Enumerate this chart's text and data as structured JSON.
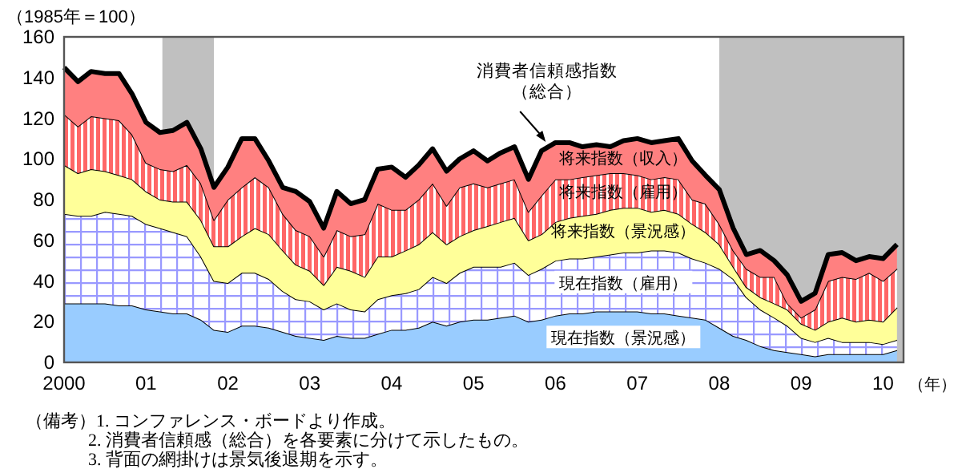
{
  "chart_data": {
    "type": "area",
    "stacked": true,
    "ylabel": "（1985年＝100）",
    "xlabel": "（年）",
    "x": [
      2000,
      2000.17,
      2000.33,
      2000.5,
      2000.67,
      2000.83,
      2001,
      2001.17,
      2001.33,
      2001.5,
      2001.67,
      2001.83,
      2002,
      2002.17,
      2002.33,
      2002.5,
      2002.67,
      2002.83,
      2003,
      2003.17,
      2003.33,
      2003.5,
      2003.67,
      2003.83,
      2004,
      2004.17,
      2004.33,
      2004.5,
      2004.67,
      2004.83,
      2005,
      2005.17,
      2005.33,
      2005.5,
      2005.67,
      2005.83,
      2006,
      2006.17,
      2006.33,
      2006.5,
      2006.67,
      2006.83,
      2007,
      2007.17,
      2007.33,
      2007.5,
      2007.67,
      2007.83,
      2008,
      2008.17,
      2008.33,
      2008.5,
      2008.67,
      2008.83,
      2009,
      2009.17,
      2009.33,
      2009.5,
      2009.67,
      2009.83,
      2010,
      2010.17
    ],
    "series": [
      {
        "name": "現在指数（景況感）",
        "color": "#99ccff",
        "values": [
          29,
          29,
          29,
          29,
          28,
          28,
          26,
          25,
          24,
          24,
          21,
          16,
          15,
          18,
          18,
          17,
          15,
          13,
          12,
          11,
          13,
          12,
          12,
          14,
          16,
          16,
          17,
          20,
          18,
          20,
          21,
          21,
          22,
          23,
          20,
          21,
          23,
          24,
          24,
          25,
          25,
          25,
          25,
          24,
          24,
          23,
          22,
          21,
          17,
          13,
          11,
          8,
          6,
          5,
          4,
          3,
          4,
          4,
          4,
          4,
          4,
          6
        ]
      },
      {
        "name": "現在指数（雇用）",
        "color": "#9999ff",
        "values": [
          44,
          43,
          43,
          45,
          45,
          44,
          42,
          41,
          40,
          38,
          31,
          24,
          24,
          26,
          26,
          24,
          20,
          18,
          18,
          15,
          16,
          14,
          13,
          17,
          17,
          18,
          19,
          22,
          21,
          24,
          26,
          26,
          25,
          26,
          23,
          25,
          27,
          27,
          27,
          27,
          28,
          29,
          29,
          31,
          31,
          31,
          29,
          28,
          29,
          28,
          21,
          18,
          16,
          13,
          8,
          7,
          8,
          6,
          6,
          6,
          5,
          5
        ]
      },
      {
        "name": "将来指数（景況感）",
        "color": "#ffff99",
        "values": [
          24,
          21,
          23,
          20,
          19,
          18,
          16,
          14,
          15,
          17,
          18,
          17,
          18,
          18,
          22,
          22,
          20,
          17,
          15,
          12,
          18,
          19,
          17,
          21,
          19,
          21,
          22,
          22,
          19,
          18,
          18,
          20,
          22,
          22,
          17,
          17,
          19,
          20,
          21,
          21,
          22,
          22,
          22,
          19,
          20,
          19,
          17,
          15,
          12,
          6,
          5,
          6,
          7,
          8,
          7,
          6,
          8,
          12,
          10,
          11,
          11,
          16
        ]
      },
      {
        "name": "将来指数（雇用）",
        "color": "#ff6666",
        "values": [
          25,
          23,
          26,
          26,
          27,
          22,
          14,
          15,
          15,
          18,
          18,
          13,
          23,
          24,
          25,
          23,
          18,
          17,
          17,
          14,
          18,
          17,
          21,
          26,
          23,
          20,
          22,
          24,
          19,
          24,
          23,
          19,
          19,
          19,
          14,
          19,
          21,
          19,
          19,
          19,
          18,
          17,
          16,
          16,
          16,
          17,
          12,
          14,
          10,
          8,
          9,
          10,
          13,
          3,
          3,
          10,
          20,
          20,
          21,
          23,
          20,
          19
        ]
      },
      {
        "name": "将来指数（収入）",
        "color": "#ff8080",
        "values": [
          23,
          22,
          22,
          22,
          23,
          20,
          20,
          18,
          20,
          21,
          17,
          16,
          16,
          24,
          19,
          13,
          13,
          19,
          17,
          14,
          19,
          16,
          17,
          17,
          21,
          16,
          17,
          17,
          17,
          14,
          16,
          13,
          15,
          16,
          16,
          22,
          18,
          18,
          15,
          15,
          13,
          16,
          18,
          18,
          18,
          20,
          19,
          14,
          17,
          11,
          7,
          13,
          8,
          14,
          8,
          8,
          13,
          12,
          9,
          8,
          11,
          12
        ]
      }
    ],
    "xlim": [
      2000,
      2010.25
    ],
    "xticks": [
      {
        "value": 2000,
        "label": "2000"
      },
      {
        "value": 2001,
        "label": "01"
      },
      {
        "value": 2002,
        "label": "02"
      },
      {
        "value": 2003,
        "label": "03"
      },
      {
        "value": 2004,
        "label": "04"
      },
      {
        "value": 2005,
        "label": "05"
      },
      {
        "value": 2006,
        "label": "06"
      },
      {
        "value": 2007,
        "label": "07"
      },
      {
        "value": 2008,
        "label": "08"
      },
      {
        "value": 2009,
        "label": "09"
      },
      {
        "value": 2010,
        "label": "10"
      }
    ],
    "ylim": [
      0,
      160
    ],
    "yticks": [
      0,
      20,
      40,
      60,
      80,
      100,
      120,
      140,
      160
    ],
    "bands": [
      {
        "axis": "x",
        "from": 2001.2,
        "to": 2001.83,
        "color": "#c0c0c0"
      },
      {
        "axis": "x",
        "from": 2008,
        "to": 2010.25,
        "color": "#c0c0c0"
      }
    ],
    "annotations": [
      {
        "text": "消費者信頼感指数（総合）",
        "x": 2005.9,
        "y": 106
      },
      "（備考）1.  コンファレンス・ボードより作成。",
      "2.  消費者信頼感（総合）を各要素に分けて示したもの。",
      "3.  背面の網掛けは景気後退期を示す。"
    ],
    "grid": false
  }
}
